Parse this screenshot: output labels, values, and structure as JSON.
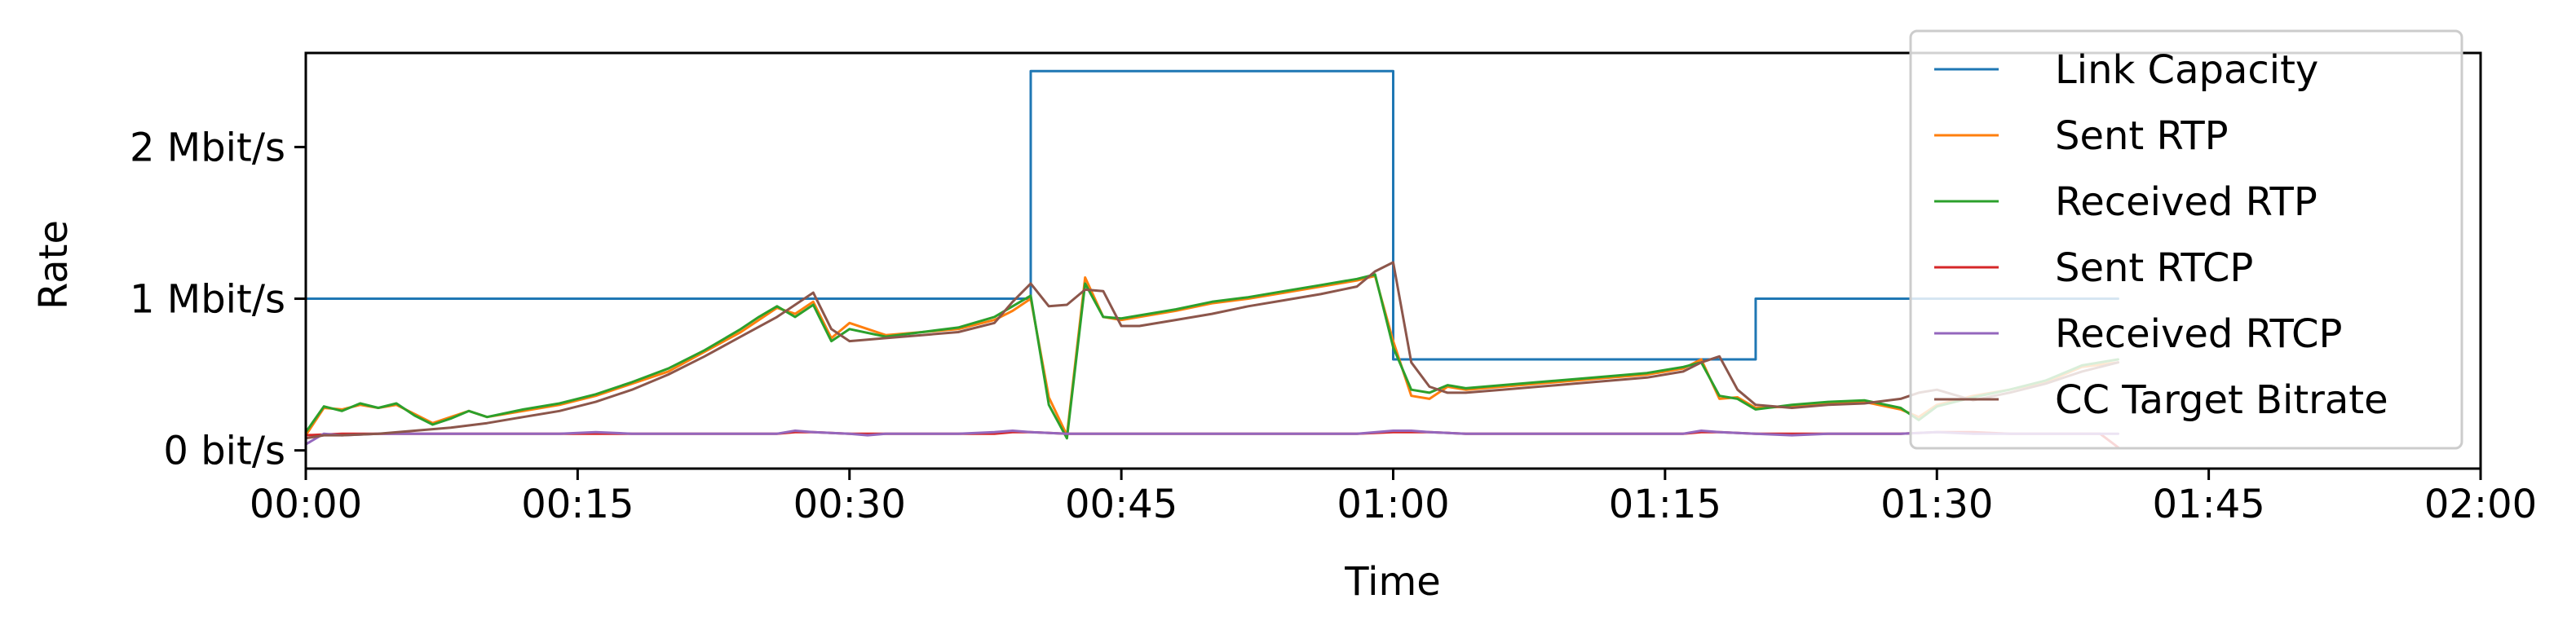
{
  "chart_data": {
    "type": "line",
    "title": "",
    "xlabel": "Time",
    "ylabel": "Rate",
    "x_unit": "seconds",
    "xlim": [
      0,
      120
    ],
    "ylim": [
      -0.12,
      2.62
    ],
    "x_ticks": [
      {
        "value": 0,
        "label": "00:00"
      },
      {
        "value": 15,
        "label": "00:15"
      },
      {
        "value": 30,
        "label": "00:30"
      },
      {
        "value": 45,
        "label": "00:45"
      },
      {
        "value": 60,
        "label": "01:00"
      },
      {
        "value": 75,
        "label": "01:15"
      },
      {
        "value": 90,
        "label": "01:30"
      },
      {
        "value": 105,
        "label": "01:45"
      },
      {
        "value": 120,
        "label": "02:00"
      }
    ],
    "y_ticks": [
      {
        "value": 0,
        "label": "0 bit/s"
      },
      {
        "value": 1,
        "label": "1 Mbit/s"
      },
      {
        "value": 2,
        "label": "2 Mbit/s"
      }
    ],
    "y_unit": "Mbit/s",
    "grid": false,
    "legend_position": "top-right",
    "series": [
      {
        "name": "Link Capacity",
        "color": "#1f77b4",
        "step": true,
        "x": [
          0,
          40,
          40,
          60,
          60,
          80,
          80,
          100
        ],
        "y": [
          1.0,
          1.0,
          2.5,
          2.5,
          0.6,
          0.6,
          1.0,
          1.0
        ]
      },
      {
        "name": "Sent RTP",
        "color": "#ff7f0e",
        "x": [
          0,
          1,
          2,
          3,
          4,
          5,
          6,
          7,
          8,
          9,
          10,
          12,
          14,
          16,
          18,
          20,
          22,
          24,
          25,
          26,
          27,
          28,
          29,
          30,
          32,
          34,
          36,
          38,
          39,
          40,
          41,
          42,
          43,
          44,
          45,
          46,
          48,
          50,
          52,
          54,
          56,
          58,
          59,
          60,
          61,
          62,
          63,
          64,
          66,
          68,
          70,
          72,
          74,
          76,
          77,
          78,
          79,
          80,
          82,
          84,
          86,
          88,
          89,
          90,
          92,
          94,
          96,
          98,
          100
        ],
        "y": [
          0.1,
          0.28,
          0.27,
          0.3,
          0.28,
          0.3,
          0.24,
          0.18,
          0.22,
          0.26,
          0.22,
          0.26,
          0.3,
          0.36,
          0.44,
          0.52,
          0.65,
          0.78,
          0.86,
          0.94,
          0.9,
          0.98,
          0.74,
          0.84,
          0.76,
          0.78,
          0.8,
          0.86,
          0.92,
          1.0,
          0.35,
          0.1,
          1.14,
          0.88,
          0.86,
          0.88,
          0.92,
          0.97,
          1.0,
          1.04,
          1.08,
          1.12,
          1.15,
          0.72,
          0.36,
          0.34,
          0.42,
          0.4,
          0.42,
          0.44,
          0.46,
          0.48,
          0.5,
          0.54,
          0.6,
          0.34,
          0.35,
          0.28,
          0.29,
          0.31,
          0.32,
          0.27,
          0.22,
          0.3,
          0.36,
          0.4,
          0.45,
          0.55,
          0.58
        ]
      },
      {
        "name": "Received RTP",
        "color": "#2ca02c",
        "x": [
          0,
          1,
          2,
          3,
          4,
          5,
          6,
          7,
          8,
          9,
          10,
          12,
          14,
          16,
          18,
          20,
          22,
          24,
          25,
          26,
          27,
          28,
          29,
          30,
          32,
          34,
          36,
          38,
          39,
          40,
          41,
          42,
          43,
          44,
          45,
          46,
          48,
          50,
          52,
          54,
          56,
          58,
          59,
          60,
          61,
          62,
          63,
          64,
          66,
          68,
          70,
          72,
          74,
          76,
          77,
          78,
          79,
          80,
          82,
          84,
          86,
          88,
          89,
          90,
          92,
          94,
          96,
          98,
          100
        ],
        "y": [
          0.12,
          0.29,
          0.26,
          0.31,
          0.28,
          0.31,
          0.23,
          0.17,
          0.21,
          0.26,
          0.22,
          0.27,
          0.31,
          0.37,
          0.45,
          0.54,
          0.66,
          0.8,
          0.88,
          0.95,
          0.88,
          0.96,
          0.72,
          0.8,
          0.75,
          0.78,
          0.81,
          0.88,
          0.95,
          1.02,
          0.3,
          0.08,
          1.1,
          0.88,
          0.87,
          0.89,
          0.93,
          0.98,
          1.01,
          1.05,
          1.09,
          1.13,
          1.16,
          0.68,
          0.4,
          0.38,
          0.43,
          0.41,
          0.43,
          0.45,
          0.47,
          0.49,
          0.51,
          0.55,
          0.58,
          0.36,
          0.34,
          0.27,
          0.3,
          0.32,
          0.33,
          0.28,
          0.2,
          0.29,
          0.35,
          0.4,
          0.46,
          0.56,
          0.6
        ]
      },
      {
        "name": "Sent RTCP",
        "color": "#d62728",
        "x": [
          0,
          2,
          4,
          6,
          8,
          10,
          12,
          14,
          16,
          18,
          20,
          22,
          24,
          26,
          27,
          28,
          30,
          32,
          34,
          36,
          38,
          39,
          40,
          42,
          44,
          46,
          48,
          50,
          52,
          54,
          56,
          58,
          60,
          62,
          64,
          66,
          68,
          70,
          72,
          74,
          76,
          77,
          78,
          80,
          82,
          84,
          86,
          88,
          90,
          92,
          94,
          96,
          98,
          99,
          100
        ],
        "y": [
          0.1,
          0.11,
          0.11,
          0.11,
          0.11,
          0.11,
          0.11,
          0.11,
          0.11,
          0.11,
          0.11,
          0.11,
          0.11,
          0.11,
          0.12,
          0.12,
          0.11,
          0.11,
          0.11,
          0.11,
          0.11,
          0.12,
          0.12,
          0.11,
          0.11,
          0.11,
          0.11,
          0.11,
          0.11,
          0.11,
          0.11,
          0.11,
          0.12,
          0.12,
          0.11,
          0.11,
          0.11,
          0.11,
          0.11,
          0.11,
          0.11,
          0.12,
          0.12,
          0.11,
          0.11,
          0.11,
          0.11,
          0.11,
          0.12,
          0.12,
          0.11,
          0.11,
          0.11,
          0.11,
          0.02
        ]
      },
      {
        "name": "Received RTCP",
        "color": "#9467bd",
        "x": [
          0,
          1,
          2,
          4,
          6,
          8,
          10,
          12,
          14,
          16,
          18,
          20,
          22,
          24,
          26,
          27,
          28,
          30,
          31,
          32,
          34,
          36,
          38,
          39,
          40,
          42,
          44,
          46,
          48,
          50,
          52,
          54,
          56,
          58,
          60,
          61,
          62,
          64,
          66,
          68,
          70,
          72,
          74,
          76,
          77,
          78,
          80,
          82,
          84,
          86,
          88,
          90,
          92,
          94,
          96,
          98,
          100
        ],
        "y": [
          0.04,
          0.11,
          0.1,
          0.11,
          0.11,
          0.11,
          0.11,
          0.11,
          0.11,
          0.12,
          0.11,
          0.11,
          0.11,
          0.11,
          0.11,
          0.13,
          0.12,
          0.11,
          0.1,
          0.11,
          0.11,
          0.11,
          0.12,
          0.13,
          0.12,
          0.11,
          0.11,
          0.11,
          0.11,
          0.11,
          0.11,
          0.11,
          0.11,
          0.11,
          0.13,
          0.13,
          0.12,
          0.11,
          0.11,
          0.11,
          0.11,
          0.11,
          0.11,
          0.11,
          0.13,
          0.12,
          0.11,
          0.1,
          0.11,
          0.11,
          0.11,
          0.12,
          0.11,
          0.11,
          0.11,
          0.11,
          0.11
        ]
      },
      {
        "name": "CC Target Bitrate",
        "color": "#8c564b",
        "x": [
          0,
          1,
          2,
          4,
          6,
          8,
          10,
          12,
          14,
          16,
          18,
          20,
          22,
          24,
          26,
          27,
          28,
          29,
          30,
          32,
          34,
          36,
          38,
          39,
          40,
          41,
          42,
          43,
          44,
          45,
          46,
          48,
          50,
          52,
          54,
          56,
          58,
          59,
          60,
          61,
          62,
          63,
          64,
          66,
          68,
          70,
          72,
          74,
          76,
          77,
          78,
          79,
          80,
          82,
          84,
          86,
          88,
          89,
          90,
          92,
          94,
          96,
          98,
          100
        ],
        "y": [
          0.08,
          0.1,
          0.1,
          0.11,
          0.13,
          0.15,
          0.18,
          0.22,
          0.26,
          0.32,
          0.4,
          0.5,
          0.62,
          0.75,
          0.88,
          0.96,
          1.04,
          0.8,
          0.72,
          0.74,
          0.76,
          0.78,
          0.84,
          0.98,
          1.1,
          0.95,
          0.96,
          1.06,
          1.05,
          0.82,
          0.82,
          0.86,
          0.9,
          0.95,
          0.99,
          1.03,
          1.08,
          1.18,
          1.24,
          0.58,
          0.42,
          0.38,
          0.38,
          0.4,
          0.42,
          0.44,
          0.46,
          0.48,
          0.52,
          0.58,
          0.62,
          0.4,
          0.3,
          0.28,
          0.3,
          0.31,
          0.34,
          0.38,
          0.4,
          0.33,
          0.38,
          0.44,
          0.52,
          0.58
        ]
      }
    ]
  }
}
